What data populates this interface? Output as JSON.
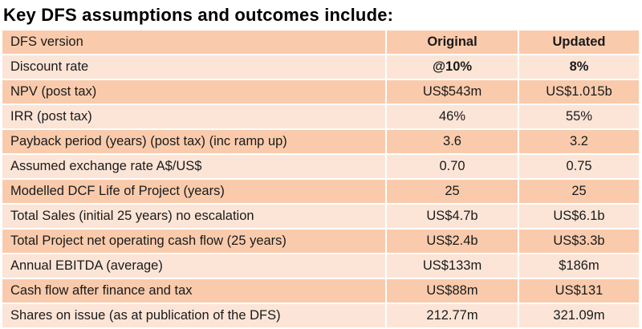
{
  "heading": "Key DFS assumptions and outcomes include:",
  "table": {
    "rows": [
      {
        "label": "DFS version",
        "original": "Original",
        "updated": "Updated"
      },
      {
        "label": "Discount rate",
        "original": "@10%",
        "updated": "8%"
      },
      {
        "label": "NPV (post tax)",
        "original": "US$543m",
        "updated": "US$1.015b"
      },
      {
        "label": "IRR (post tax)",
        "original": "46%",
        "updated": "55%"
      },
      {
        "label": "Payback period (years) (post tax) (inc ramp up)",
        "original": "3.6",
        "updated": "3.2"
      },
      {
        "label": "Assumed exchange rate A$/US$",
        "original": "0.70",
        "updated": "0.75"
      },
      {
        "label": "Modelled DCF Life of Project (years)",
        "original": "25",
        "updated": "25"
      },
      {
        "label": "Total Sales (initial 25 years) no escalation",
        "original": "US$4.7b",
        "updated": "US$6.1b"
      },
      {
        "label": "Total Project net operating cash flow (25 years)",
        "original": "US$2.4b",
        "updated": "US$3.3b"
      },
      {
        "label": "Annual EBITDA (average)",
        "original": "US$133m",
        "updated": "$186m"
      },
      {
        "label": "Cash flow after finance and tax",
        "original": "US$88m",
        "updated": "US$131"
      },
      {
        "label": "Shares on issue (as at publication of the DFS)",
        "original": "212.77m",
        "updated": "321.09m"
      }
    ]
  },
  "colors": {
    "row_dark": "#f9cbac",
    "row_light": "#fce5d7"
  }
}
